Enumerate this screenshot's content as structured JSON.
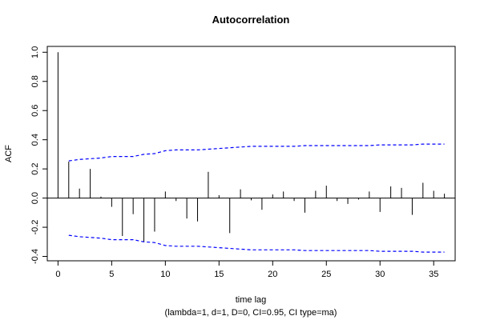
{
  "chart_data": {
    "type": "bar",
    "title": "Autocorrelation",
    "xlabel": "time lag",
    "subtitle": "(lambda=1, d=1, D=0, CI=0.95, CI type=ma)",
    "ylabel": "ACF",
    "xlim": [
      -1,
      37
    ],
    "ylim": [
      -0.43,
      1.04
    ],
    "x_ticks": [
      "0",
      "5",
      "10",
      "15",
      "20",
      "25",
      "30",
      "35"
    ],
    "x_tick_values": [
      0,
      5,
      10,
      15,
      20,
      25,
      30,
      35
    ],
    "y_ticks": [
      "-0.4",
      "-0.2",
      "0.0",
      "0.2",
      "0.4",
      "0.6",
      "0.8",
      "1.0"
    ],
    "y_tick_values": [
      -0.4,
      -0.2,
      0.0,
      0.2,
      0.4,
      0.6,
      0.8,
      1.0
    ],
    "grid": false,
    "lags": [
      0,
      1,
      2,
      3,
      4,
      5,
      6,
      7,
      8,
      9,
      10,
      11,
      12,
      13,
      14,
      15,
      16,
      17,
      18,
      19,
      20,
      21,
      22,
      23,
      24,
      25,
      26,
      27,
      28,
      29,
      30,
      31,
      32,
      33,
      34,
      35,
      36
    ],
    "acf": [
      1.0,
      0.25,
      0.065,
      0.2,
      0.01,
      -0.06,
      -0.26,
      -0.11,
      -0.3,
      -0.23,
      0.045,
      -0.02,
      -0.14,
      -0.16,
      0.18,
      0.02,
      -0.24,
      0.06,
      -0.015,
      -0.08,
      0.025,
      0.045,
      -0.02,
      -0.1,
      0.05,
      0.085,
      -0.02,
      -0.04,
      -0.01,
      0.045,
      -0.095,
      0.08,
      0.07,
      -0.115,
      0.105,
      0.05,
      0.03
    ],
    "ci_upper": [
      0.255,
      0.265,
      0.27,
      0.275,
      0.285,
      0.285,
      0.285,
      0.3,
      0.305,
      0.325,
      0.33,
      0.33,
      0.33,
      0.335,
      0.34,
      0.345,
      0.35,
      0.355,
      0.355,
      0.355,
      0.355,
      0.355,
      0.36,
      0.36,
      0.36,
      0.36,
      0.36,
      0.36,
      0.36,
      0.365,
      0.365,
      0.365,
      0.365,
      0.37,
      0.37,
      0.37
    ],
    "ci_lower": [
      -0.255,
      -0.265,
      -0.27,
      -0.275,
      -0.285,
      -0.285,
      -0.285,
      -0.3,
      -0.305,
      -0.325,
      -0.33,
      -0.33,
      -0.33,
      -0.335,
      -0.34,
      -0.345,
      -0.35,
      -0.355,
      -0.355,
      -0.355,
      -0.355,
      -0.355,
      -0.36,
      -0.36,
      -0.36,
      -0.36,
      -0.36,
      -0.36,
      -0.36,
      -0.365,
      -0.365,
      -0.365,
      -0.365,
      -0.37,
      -0.37,
      -0.37
    ],
    "ci_lag_start": 1,
    "colors": {
      "bars": "#000000",
      "ci": "#0000ff",
      "zero_line": "#000000",
      "box": "#000000"
    }
  }
}
